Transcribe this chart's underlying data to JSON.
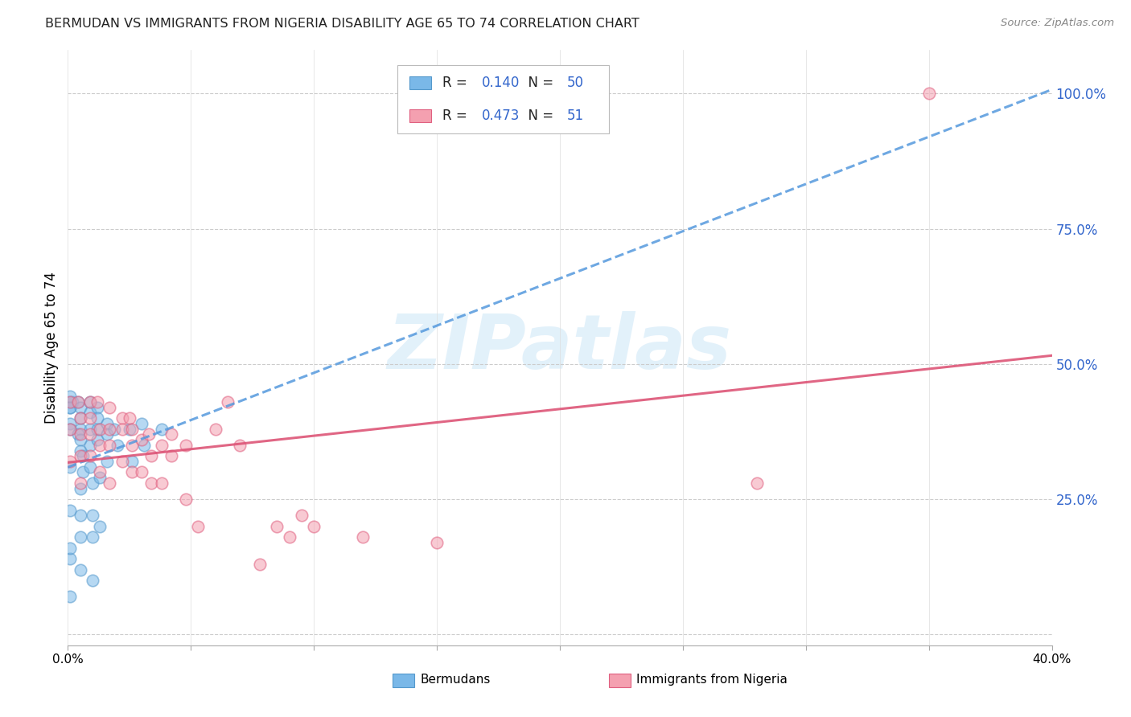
{
  "title": "BERMUDAN VS IMMIGRANTS FROM NIGERIA DISABILITY AGE 65 TO 74 CORRELATION CHART",
  "source": "Source: ZipAtlas.com",
  "ylabel": "Disability Age 65 to 74",
  "xlim": [
    0.0,
    0.4
  ],
  "ylim": [
    -0.02,
    1.08
  ],
  "xticks": [
    0.0,
    0.05,
    0.1,
    0.15,
    0.2,
    0.25,
    0.3,
    0.35,
    0.4
  ],
  "ytick_positions": [
    0.0,
    0.25,
    0.5,
    0.75,
    1.0
  ],
  "yticklabels": [
    "",
    "25.0%",
    "50.0%",
    "75.0%",
    "100.0%"
  ],
  "grid_color": "#cccccc",
  "background_color": "#ffffff",
  "watermark_text": "ZIPatlas",
  "series1_label": "Bermudans",
  "series1_color": "#7ab8e8",
  "series1_edge_color": "#5599cc",
  "series1_R": "0.140",
  "series1_N": "50",
  "series2_label": "Immigrants from Nigeria",
  "series2_color": "#f4a0b0",
  "series2_edge_color": "#e06080",
  "series2_R": "0.473",
  "series2_N": "51",
  "trendline1_color": "#5599dd",
  "trendline2_color": "#dd5577",
  "legend_color": "#3366cc",
  "series1_x": [
    0.002,
    0.001,
    0.001,
    0.001,
    0.001,
    0.001,
    0.001,
    0.001,
    0.004,
    0.005,
    0.005,
    0.005,
    0.004,
    0.005,
    0.005,
    0.006,
    0.006,
    0.005,
    0.005,
    0.005,
    0.005,
    0.009,
    0.009,
    0.009,
    0.009,
    0.009,
    0.01,
    0.01,
    0.01,
    0.01,
    0.012,
    0.012,
    0.012,
    0.012,
    0.013,
    0.013,
    0.016,
    0.016,
    0.016,
    0.019,
    0.02,
    0.025,
    0.026,
    0.03,
    0.031,
    0.038,
    0.001,
    0.001,
    0.001,
    0.001
  ],
  "series1_y": [
    0.43,
    0.43,
    0.42,
    0.42,
    0.39,
    0.38,
    0.31,
    0.14,
    0.43,
    0.42,
    0.4,
    0.38,
    0.37,
    0.36,
    0.34,
    0.33,
    0.3,
    0.27,
    0.22,
    0.18,
    0.12,
    0.43,
    0.41,
    0.38,
    0.35,
    0.31,
    0.28,
    0.22,
    0.18,
    0.1,
    0.42,
    0.4,
    0.38,
    0.36,
    0.29,
    0.2,
    0.39,
    0.37,
    0.32,
    0.38,
    0.35,
    0.38,
    0.32,
    0.39,
    0.35,
    0.38,
    0.44,
    0.23,
    0.16,
    0.07
  ],
  "series2_x": [
    0.001,
    0.001,
    0.001,
    0.004,
    0.005,
    0.005,
    0.005,
    0.005,
    0.009,
    0.009,
    0.009,
    0.009,
    0.012,
    0.013,
    0.013,
    0.013,
    0.017,
    0.017,
    0.017,
    0.017,
    0.022,
    0.022,
    0.022,
    0.025,
    0.026,
    0.026,
    0.026,
    0.03,
    0.03,
    0.033,
    0.034,
    0.034,
    0.038,
    0.038,
    0.042,
    0.042,
    0.048,
    0.048,
    0.053,
    0.06,
    0.065,
    0.07,
    0.078,
    0.085,
    0.09,
    0.095,
    0.1,
    0.12,
    0.15,
    0.28,
    0.35
  ],
  "series2_y": [
    0.43,
    0.38,
    0.32,
    0.43,
    0.4,
    0.37,
    0.33,
    0.28,
    0.43,
    0.4,
    0.37,
    0.33,
    0.43,
    0.38,
    0.35,
    0.3,
    0.42,
    0.38,
    0.35,
    0.28,
    0.4,
    0.38,
    0.32,
    0.4,
    0.38,
    0.35,
    0.3,
    0.36,
    0.3,
    0.37,
    0.33,
    0.28,
    0.35,
    0.28,
    0.37,
    0.33,
    0.35,
    0.25,
    0.2,
    0.38,
    0.43,
    0.35,
    0.13,
    0.2,
    0.18,
    0.22,
    0.2,
    0.18,
    0.17,
    0.28,
    1.0
  ]
}
